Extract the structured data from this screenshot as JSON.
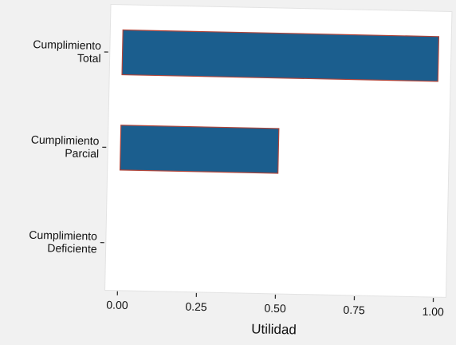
{
  "chart_data": {
    "type": "bar",
    "orientation": "horizontal",
    "categories": [
      [
        "Cumplimiento",
        "Total"
      ],
      [
        "Cumplimiento",
        "Parcial"
      ],
      [
        "Cumplimiento",
        "Deficiente"
      ]
    ],
    "values": [
      1.0,
      0.5,
      0.0
    ],
    "xlabel": "Utilidad",
    "xlim": [
      -0.04,
      1.04
    ],
    "xticks": [
      0.0,
      0.25,
      0.5,
      0.75,
      1.0
    ],
    "xtick_labels": [
      "0.00",
      "0.25",
      "0.50",
      "0.75",
      "1.00"
    ],
    "grid": false,
    "legend": "none",
    "colors": {
      "bar_fill": "#1b5e8e",
      "bar_edge": "#b0453a",
      "panel": "#ffffff",
      "background": "#f1f1f1",
      "text": "#111111"
    }
  }
}
